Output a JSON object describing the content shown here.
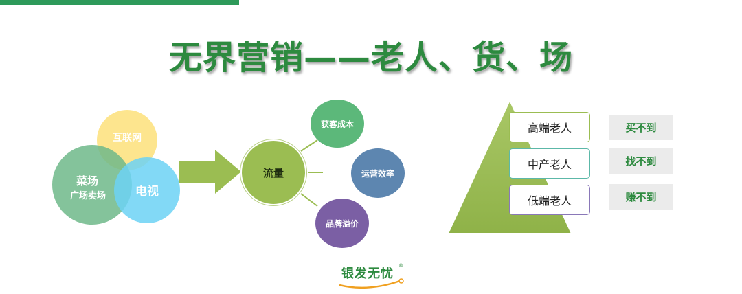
{
  "title": "无界营销——老人、货、场",
  "venn": {
    "internet": "互联网",
    "market_line1": "菜场",
    "market_line2": "广场卖场",
    "tv": "电视"
  },
  "flow": {
    "center": "流量",
    "outcomes": [
      "获客成本",
      "运营效率",
      "品牌溢价"
    ]
  },
  "pyramid": {
    "levels": [
      "高端老人",
      "中产老人",
      "低端老人"
    ],
    "tags": [
      "买不到",
      "找不到",
      "赚不到"
    ]
  },
  "colors": {
    "brand_green": "#2d8a3f",
    "internet": "#fde07a",
    "market": "#6fb88a",
    "tv": "#6cd2f5",
    "flow": "#9bbd52",
    "cost": "#5cb87a",
    "ops": "#5d86b0",
    "brand": "#7b5fa4",
    "pyramid": "#9bbd52"
  },
  "logo": {
    "text": "银发无忧",
    "reg": "®"
  }
}
